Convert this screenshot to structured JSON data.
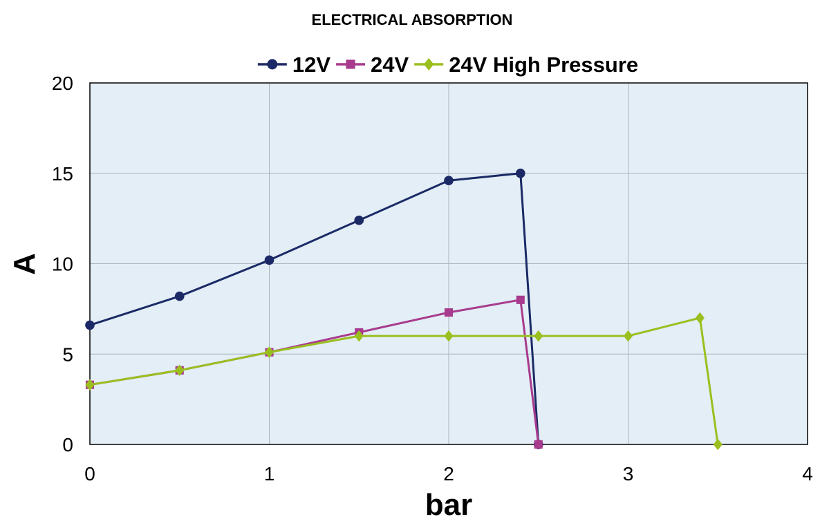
{
  "chart_data": {
    "type": "line",
    "title": "ELECTRICAL ABSORPTION",
    "xlabel": "bar",
    "ylabel": "A",
    "xlim": [
      0,
      4
    ],
    "ylim": [
      0,
      20
    ],
    "x_ticks": [
      0,
      1,
      2,
      3,
      4
    ],
    "y_ticks": [
      0,
      5,
      10,
      15,
      20
    ],
    "grid": true,
    "legend_position": "top",
    "plot_background": "#e3eef6",
    "series": [
      {
        "name": "12V",
        "color": "#1b2a66",
        "marker": "circle",
        "x": [
          0,
          0.5,
          1,
          1.5,
          2,
          2.4,
          2.5
        ],
        "y": [
          6.6,
          8.2,
          10.2,
          12.4,
          14.6,
          15,
          0
        ]
      },
      {
        "name": "24V",
        "color": "#a83b8e",
        "marker": "square",
        "x": [
          0,
          0.5,
          1,
          1.5,
          2,
          2.4,
          2.5
        ],
        "y": [
          3.3,
          4.1,
          5.1,
          6.2,
          7.3,
          8,
          0
        ]
      },
      {
        "name": "24V High Pressure",
        "color": "#9bbf1e",
        "marker": "diamond",
        "x": [
          0,
          0.5,
          1,
          1.5,
          2,
          2.5,
          3,
          3.4,
          3.5
        ],
        "y": [
          3.3,
          4.1,
          5.1,
          6,
          6,
          6,
          6,
          7,
          0
        ]
      }
    ]
  }
}
